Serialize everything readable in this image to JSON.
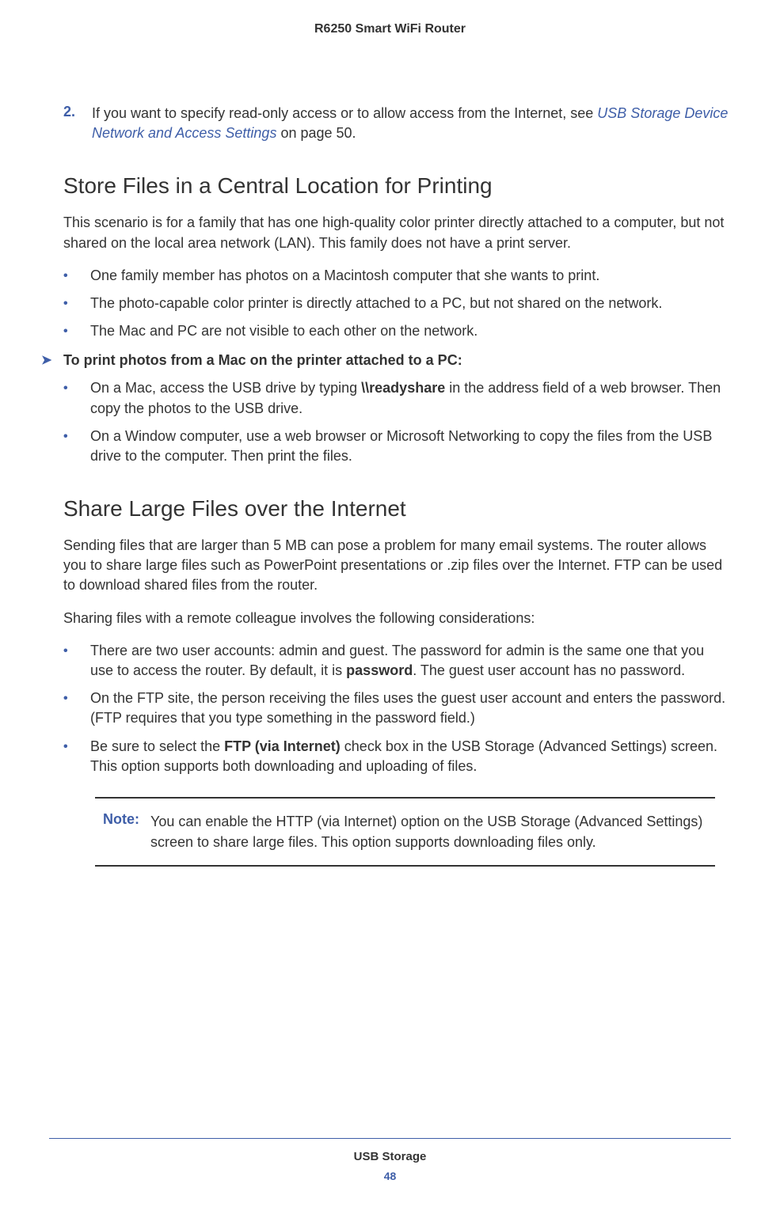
{
  "colors": {
    "accent": "#3e5ea8",
    "text": "#333333",
    "rule": "#3e5ea8"
  },
  "header": {
    "title": "R6250 Smart WiFi Router"
  },
  "step2": {
    "number": "2.",
    "before_link": "If you want to specify read-only access or to allow access from the Internet, see ",
    "link": "USB Storage Device Network and Access Settings",
    "after_link": " on page 50."
  },
  "section1": {
    "heading": "Store Files in a Central Location for Printing",
    "intro": "This scenario is for a family that has one high-quality color printer directly attached to a computer, but not shared on the local area network (LAN). This family does not have a print server.",
    "bullets": [
      "One family member has photos on a Macintosh computer that she wants to print.",
      "The photo-capable color printer is directly attached to a PC, but not shared on the network.",
      "The Mac and PC are not visible to each other on the network."
    ],
    "proc_head": "To print photos from a Mac on the printer attached to a PC:",
    "proc_bullets": {
      "b1": {
        "pre": "On a Mac, access the USB drive by typing ",
        "bold": "\\\\readyshare",
        "post": " in the address field of a web browser. Then copy the photos to the USB drive."
      },
      "b2": {
        "text": "On a Window computer, use a web browser or Microsoft Networking to copy the files from the USB drive to the computer. Then print the files."
      }
    }
  },
  "section2": {
    "heading": "Share Large Files over the Internet",
    "p1": "Sending files that are larger than 5 MB can pose a problem for many email systems. The router allows you to share large files such as PowerPoint presentations or .zip files over the Internet. FTP can be used to download shared files from the router.",
    "p2": "Sharing files with a remote colleague involves the following considerations:",
    "bullets": {
      "b1": {
        "pre": "There are two user accounts: admin and guest. The password for admin is the same one that you use to access the router. By default, it is ",
        "bold": "password",
        "post": ". The guest user account has no password."
      },
      "b2": {
        "text": "On the FTP site, the person receiving the files uses the guest user account and enters the password. (FTP requires that you type something in the password field.)"
      },
      "b3": {
        "pre": "Be sure to select the ",
        "bold": "FTP (via Internet)",
        "post": " check box in the USB Storage (Advanced Settings) screen. This option supports both downloading and uploading of files."
      }
    },
    "note": {
      "label": "Note:",
      "text": "You can enable the HTTP (via Internet) option on the USB Storage (Advanced Settings) screen to share large files. This option supports downloading files only."
    }
  },
  "footer": {
    "chapter": "USB Storage",
    "page": "48"
  }
}
